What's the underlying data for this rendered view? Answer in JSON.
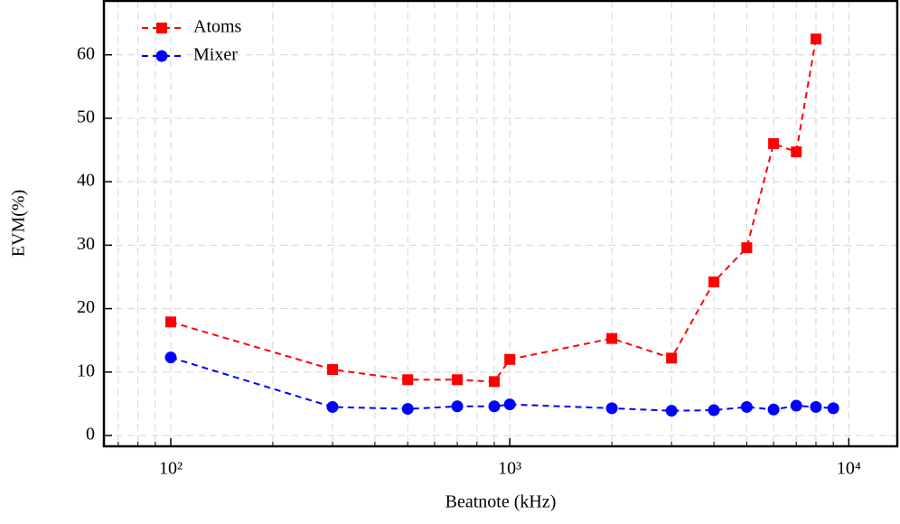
{
  "chart_data": {
    "type": "line",
    "xlabel": "Beatnote (kHz)",
    "ylabel": "EVM(%)",
    "xscale": "log",
    "xlim": [
      63.5,
      13900
    ],
    "ylim": [
      -1.7,
      68.5
    ],
    "xticks": [
      {
        "value": 100,
        "label": "10²"
      },
      {
        "value": 1000,
        "label": "10³"
      },
      {
        "value": 10000,
        "label": "10⁴"
      }
    ],
    "xminorticks": [
      70,
      80,
      90,
      200,
      300,
      400,
      500,
      600,
      700,
      800,
      900,
      2000,
      3000,
      4000,
      5000,
      6000,
      7000,
      8000,
      9000
    ],
    "yticks": [
      0,
      10,
      20,
      30,
      40,
      50,
      60
    ],
    "grid": true,
    "legend": "upper left",
    "series": [
      {
        "name": "Atoms",
        "color": "#ff0000",
        "marker": "square",
        "x": [
          100,
          300,
          500,
          700,
          900,
          1000,
          2000,
          3000,
          4000,
          5000,
          6000,
          7000,
          8000
        ],
        "values": [
          17.9,
          10.4,
          8.8,
          8.8,
          8.5,
          12.0,
          15.3,
          12.2,
          24.2,
          29.6,
          46.0,
          44.7,
          62.5
        ]
      },
      {
        "name": "Mixer",
        "color": "#0000ff",
        "marker": "circle",
        "x": [
          100,
          300,
          500,
          700,
          900,
          1000,
          2000,
          3000,
          4000,
          5000,
          6000,
          7000,
          8000,
          9000
        ],
        "values": [
          12.3,
          4.5,
          4.2,
          4.6,
          4.6,
          4.9,
          4.3,
          3.9,
          4.0,
          4.5,
          4.1,
          4.7,
          4.5,
          4.3
        ]
      }
    ]
  }
}
